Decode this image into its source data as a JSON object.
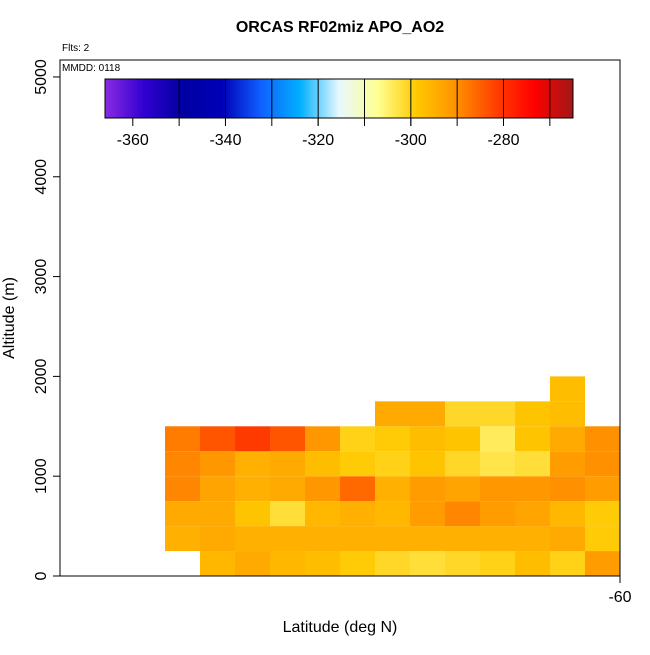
{
  "chart_data": {
    "type": "heatmap",
    "title": "ORCAS RF02miz APO_AO2",
    "annotations": [
      "Flts: 2",
      "MMDD: 0118"
    ],
    "x_label": "Latitude (deg N)",
    "y_label": "Altitude (m)",
    "xlim": [
      -76,
      -60
    ],
    "xticks": [
      -60
    ],
    "ylim": [
      0,
      5170
    ],
    "yticks": [
      0,
      1000,
      2000,
      3000,
      4000,
      5000
    ],
    "cell_width": 1,
    "cell_height": 250,
    "x": [
      -71.5,
      -70.5,
      -69.5,
      -68.5,
      -67.5,
      -66.5,
      -65.5,
      -64.5,
      -63.5,
      -62.5,
      -61.5,
      -60.5,
      -72.5,
      -71.5,
      -70.5,
      -69.5,
      -68.5,
      -67.5,
      -66.5,
      -65.5,
      -64.5,
      -63.5,
      -62.5,
      -61.5,
      -60.5,
      -72.5,
      -71.5,
      -70.5,
      -69.5,
      -68.5,
      -67.5,
      -66.5,
      -65.5,
      -64.5,
      -63.5,
      -62.5,
      -61.5,
      -60.5,
      -72.5,
      -71.5,
      -70.5,
      -69.5,
      -68.5,
      -67.5,
      -66.5,
      -65.5,
      -64.5,
      -63.5,
      -62.5,
      -61.5,
      -60.5,
      -72.5,
      -71.5,
      -70.5,
      -69.5,
      -68.5,
      -67.5,
      -66.5,
      -65.5,
      -64.5,
      -63.5,
      -62.5,
      -61.5,
      -60.5,
      -72.5,
      -71.5,
      -70.5,
      -69.5,
      -68.5,
      -67.5,
      -66.5,
      -65.5,
      -64.5,
      -63.5,
      -62.5,
      -61.5,
      -60.5,
      -66.5,
      -65.5,
      -64.5,
      -63.5,
      -62.5,
      -61.5,
      -61.5
    ],
    "y": [
      125,
      125,
      125,
      125,
      125,
      125,
      125,
      125,
      125,
      125,
      125,
      125,
      375,
      375,
      375,
      375,
      375,
      375,
      375,
      375,
      375,
      375,
      375,
      375,
      375,
      625,
      625,
      625,
      625,
      625,
      625,
      625,
      625,
      625,
      625,
      625,
      625,
      625,
      875,
      875,
      875,
      875,
      875,
      875,
      875,
      875,
      875,
      875,
      875,
      875,
      875,
      1125,
      1125,
      1125,
      1125,
      1125,
      1125,
      1125,
      1125,
      1125,
      1125,
      1125,
      1125,
      1125,
      1375,
      1375,
      1375,
      1375,
      1375,
      1375,
      1375,
      1375,
      1375,
      1375,
      1375,
      1375,
      1375,
      1625,
      1625,
      1625,
      1625,
      1625,
      1625,
      1875
    ],
    "values": [
      -296,
      -294,
      -296,
      -297,
      -299,
      -301,
      -302,
      -301,
      -300,
      -297,
      -300,
      -292,
      -295,
      -294,
      -295,
      -295,
      -295,
      -295,
      -295,
      -295,
      -295,
      -295,
      -295,
      -294,
      -299,
      -294,
      -294,
      -298,
      -302,
      -296,
      -295,
      -296,
      -292,
      -289,
      -292,
      -293,
      -296,
      -299,
      -289,
      -293,
      -295,
      -294,
      -291,
      -286,
      -295,
      -292,
      -293,
      -291,
      -291,
      -290,
      -292,
      -289,
      -291,
      -295,
      -294,
      -297,
      -299,
      -300,
      -298,
      -301,
      -303,
      -302,
      -292,
      -290,
      -288,
      -284,
      -281,
      -284,
      -291,
      -300,
      -299,
      -297,
      -298,
      -304,
      -298,
      -294,
      -290,
      -294,
      -294,
      -301,
      -301,
      -298,
      -297,
      -297
    ],
    "colorbar_lim": [
      -366,
      -265
    ],
    "colorbar_ticks": [
      -360,
      -340,
      -320,
      -300,
      -280
    ],
    "colorbar_breaks": [
      -350,
      -340,
      -330,
      -320,
      -310,
      -300,
      -290,
      -280,
      -270
    ],
    "colorscale": [
      "#8a2be2",
      "#3000d0",
      "#0000a0",
      "#0000b8",
      "#1060ff",
      "#00b0ff",
      "#e8f8ff",
      "#ffff90",
      "#ffc800",
      "#ff9200",
      "#ff4000",
      "#ff0000",
      "#a01818"
    ]
  }
}
